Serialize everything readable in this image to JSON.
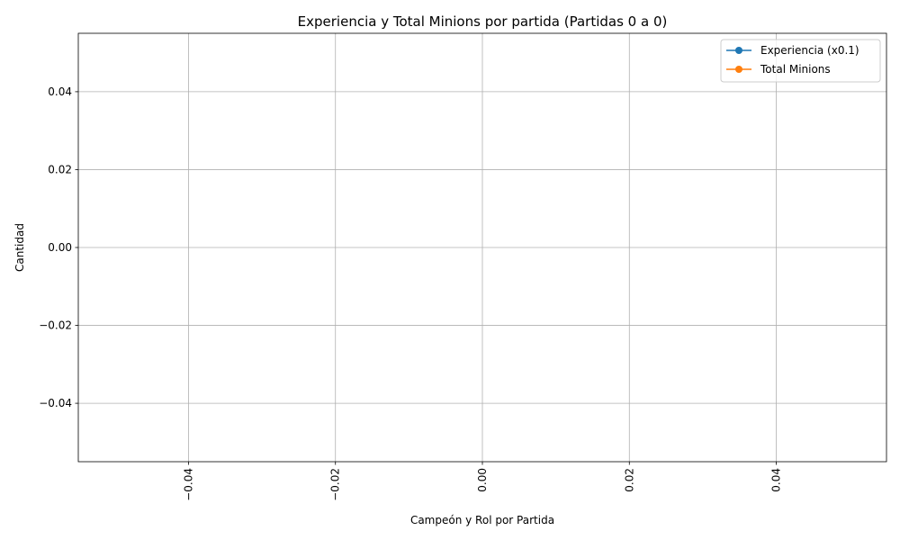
{
  "chart_data": {
    "type": "line",
    "title": "Experiencia y Total Minions por partida (Partidas 0 a 0)",
    "xlabel": "Campeón y Rol por Partida",
    "ylabel": "Cantidad",
    "xlim": [
      -0.055,
      0.055
    ],
    "ylim": [
      -0.055,
      0.055
    ],
    "x_ticks": [
      -0.04,
      -0.02,
      0.0,
      0.02,
      0.04
    ],
    "x_tick_labels": [
      "−0.04",
      "−0.02",
      "0.00",
      "0.02",
      "0.04"
    ],
    "x_tick_rotation": 90,
    "y_ticks": [
      -0.04,
      -0.02,
      0.0,
      0.02,
      0.04
    ],
    "y_tick_labels": [
      "−0.04",
      "−0.02",
      "0.00",
      "0.02",
      "0.04"
    ],
    "grid": true,
    "legend_position": "top-right",
    "series": [
      {
        "name": "Experiencia (x0.1)",
        "color": "#1f77b4",
        "marker": "circle",
        "x": [],
        "y": []
      },
      {
        "name": "Total Minions",
        "color": "#ff7f0e",
        "marker": "circle",
        "x": [],
        "y": []
      }
    ]
  }
}
